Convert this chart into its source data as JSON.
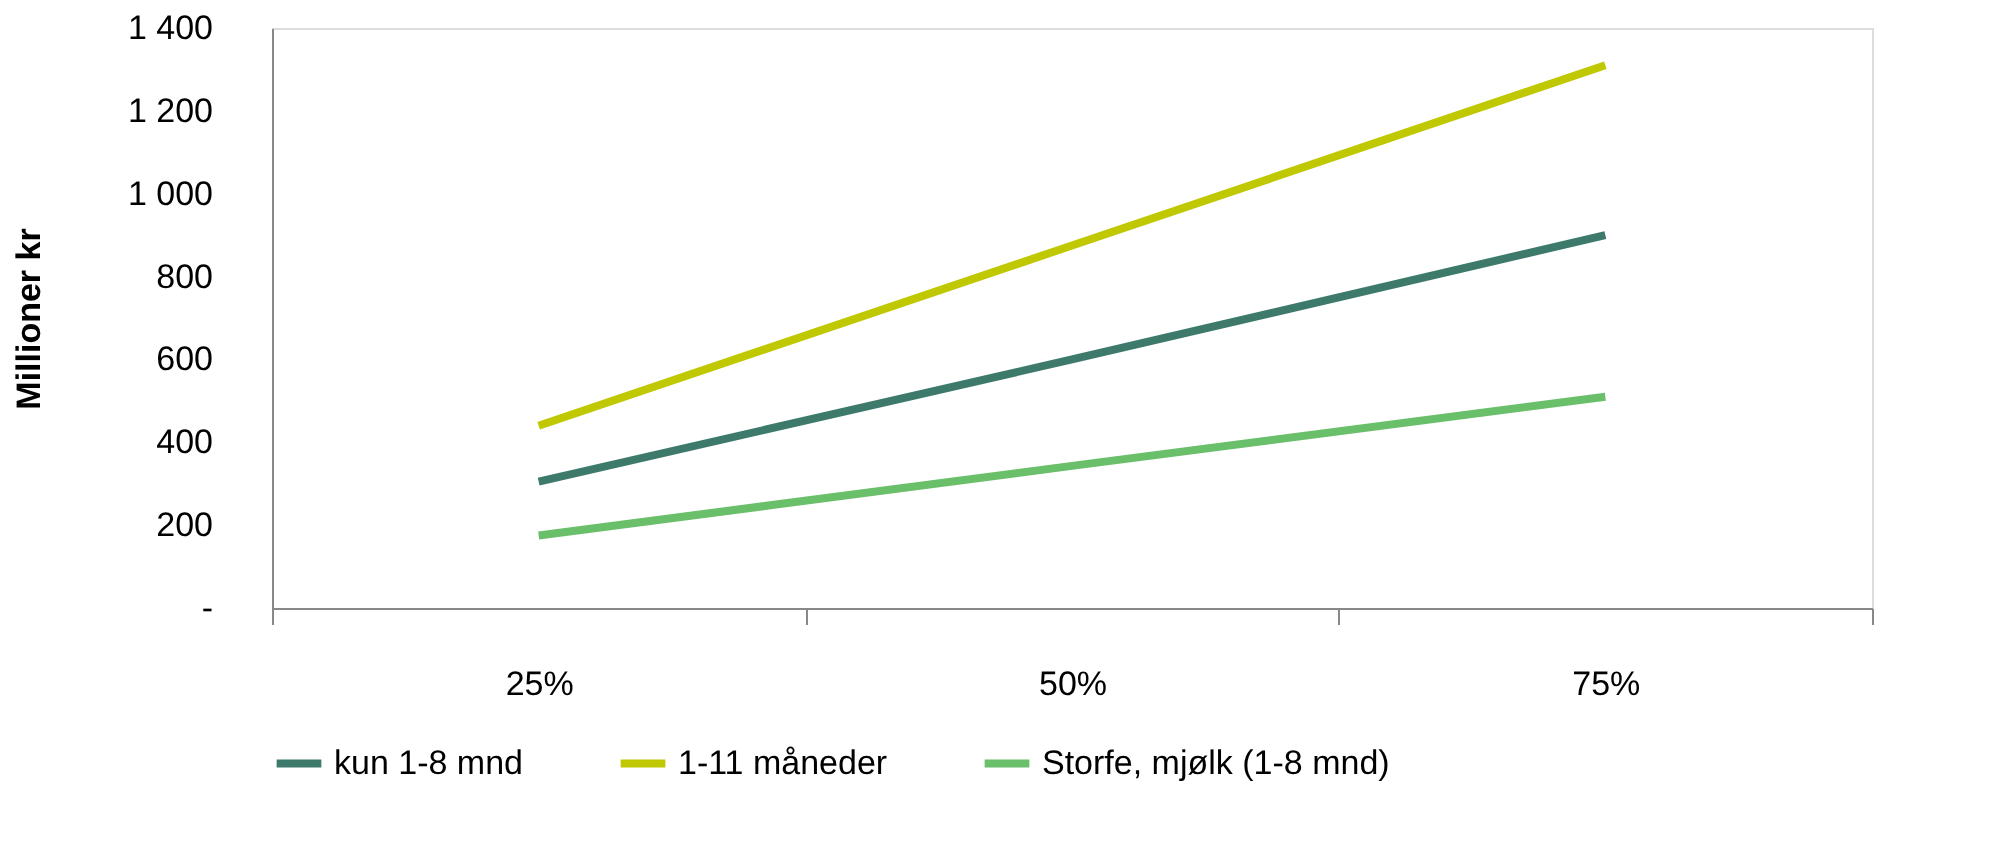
{
  "chart_data": {
    "type": "line",
    "ylabel": "Millioner kr",
    "categories": [
      "25%",
      "50%",
      "75%"
    ],
    "series": [
      {
        "name": "kun 1-8 mnd",
        "color": "#3d7a6b",
        "values": [
          305,
          600,
          900
        ]
      },
      {
        "name": "1-11 måneder",
        "color": "#bfc800",
        "values": [
          440,
          875,
          1310
        ]
      },
      {
        "name": "Storfe, mjølk (1-8 mnd)",
        "color": "#6abf6a",
        "values": [
          175,
          343,
          510
        ]
      }
    ],
    "ylim": [
      0,
      1400
    ],
    "yticks": [
      {
        "value": 0,
        "label": "-"
      },
      200,
      400,
      600,
      800,
      {
        "value": 1000,
        "label": "1 000"
      },
      {
        "value": 1200,
        "label": "1 200"
      },
      {
        "value": 1400,
        "label": "1 400"
      }
    ],
    "grid": false,
    "legend": "bottom",
    "marker": "none",
    "line_style": "solid"
  }
}
